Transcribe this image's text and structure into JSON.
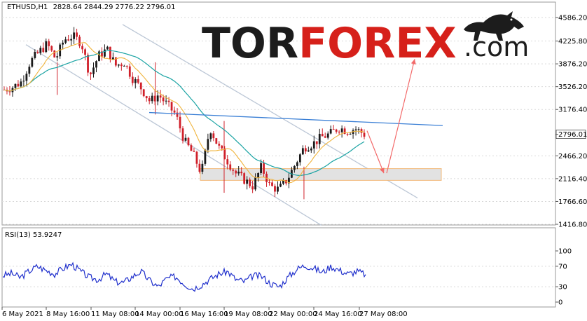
{
  "header": {
    "symbol_timeframe": "ETHUSD,H1",
    "ohlc": "2828.64 2844.29 2776.22 2796.01"
  },
  "logo": {
    "part1": "TOR",
    "part2": "FOREX",
    "part3": ".com",
    "icon": "bull-icon"
  },
  "rsi_label": "RSI(13) 53.9247",
  "price_axis_ticks": [
    "4586.20",
    "4225.80",
    "3876.20",
    "3526.20",
    "3176.40",
    "2796.01",
    "2466.20",
    "2116.40",
    "1766.60",
    "1416.80"
  ],
  "rsi_axis_ticks": [
    "100",
    "70",
    "30",
    "0"
  ],
  "time_axis_ticks": [
    "6 May 2021",
    "8 May 16:00",
    "11 May 08:00",
    "14 May 00:00",
    "16 May 16:00",
    "19 May 08:00",
    "22 May 00:00",
    "24 May 16:00",
    "27 May 08:00"
  ],
  "current_price_label": "2796.01",
  "colors": {
    "bull": "#1a1a1a",
    "bear": "#d0202a",
    "ma_fast": "#f0b43c",
    "ma_slow": "#1aa3a3",
    "channel": "#bcc7d6",
    "resistance": "#3a7fd5",
    "support_fill": "#e2e2e2",
    "support_border": "#f2b878",
    "forecast_arrow": "#f36a6a",
    "rsi_line": "#1f2fcc",
    "grid": "#d9d9d9"
  },
  "chart_data": [
    {
      "type": "candlestick",
      "symbol": "ETHUSD",
      "timeframe": "H1",
      "y_axis_ticks": [
        4586.2,
        4225.8,
        3876.2,
        3526.2,
        3176.4,
        2796.01,
        2466.2,
        2116.4,
        1766.6,
        1416.8
      ],
      "x_axis_ticks": [
        "6 May 2021",
        "8 May 16:00",
        "11 May 08:00",
        "14 May 00:00",
        "16 May 16:00",
        "19 May 08:00",
        "22 May 00:00",
        "24 May 16:00",
        "27 May 08:00"
      ],
      "price_path_closes": [
        3480,
        3520,
        3600,
        3900,
        4050,
        4180,
        3950,
        4250,
        4300,
        4200,
        3700,
        4000,
        4100,
        3850,
        3900,
        3650,
        3500,
        3300,
        3400,
        3250,
        3100,
        2700,
        2500,
        2200,
        2900,
        2600,
        2400,
        2200,
        2100,
        2000,
        2300,
        2000,
        1950,
        2100,
        2350,
        2600,
        2650,
        2750,
        2800,
        2900,
        2850,
        2880,
        2796.01
      ],
      "current_price": 2796.01,
      "last_ohlc": {
        "open": 2828.64,
        "high": 2844.29,
        "low": 2776.22,
        "close": 2796.01
      },
      "support_zone": [
        2090,
        2270
      ],
      "forecast_target": 2200,
      "upside_target": 3950
    },
    {
      "type": "line",
      "name": "RSI(13)",
      "last_value": 53.9247,
      "y_axis_ticks": [
        100,
        70,
        30,
        0
      ],
      "levels": [
        70,
        30
      ],
      "values_sampled": [
        52,
        56,
        48,
        60,
        70,
        62,
        55,
        66,
        74,
        60,
        48,
        44,
        55,
        40,
        38,
        50,
        60,
        42,
        30,
        46,
        50,
        36,
        26,
        34,
        45,
        55,
        60,
        44,
        40,
        52,
        50,
        36,
        30,
        48,
        64,
        72,
        66,
        58,
        70,
        62,
        55,
        60,
        54
      ]
    }
  ]
}
